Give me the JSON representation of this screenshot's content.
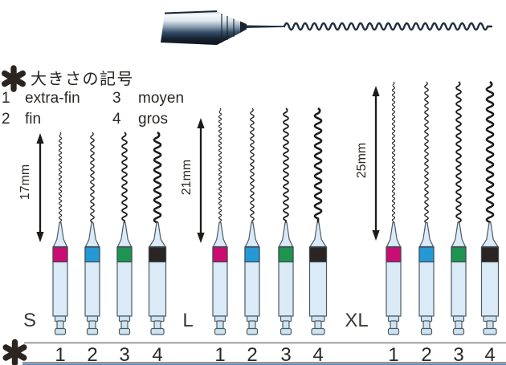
{
  "legend": {
    "marker": "✱",
    "heading": "大きさの記号",
    "items": [
      {
        "num": "1",
        "label": "extra-fin"
      },
      {
        "num": "2",
        "label": "fin"
      },
      {
        "num": "3",
        "label": "moyen"
      },
      {
        "num": "4",
        "label": "gros"
      }
    ]
  },
  "sizes": [
    {
      "num": "1",
      "name": "extra-fin",
      "band_color": "#c90d72",
      "handle_width": 18,
      "wire_amplitude": 1.7,
      "wire_period": 6,
      "wire_stroke": 1.0
    },
    {
      "num": "2",
      "name": "fin",
      "band_color": "#2598d6",
      "handle_width": 18,
      "wire_amplitude": 2.3,
      "wire_period": 8,
      "wire_stroke": 1.3
    },
    {
      "num": "3",
      "name": "moyen",
      "band_color": "#1e9450",
      "handle_width": 18,
      "wire_amplitude": 3.2,
      "wire_period": 10,
      "wire_stroke": 1.8
    },
    {
      "num": "4",
      "name": "gros",
      "band_color": "#2a2422",
      "handle_width": 21,
      "wire_amplitude": 4.4,
      "wire_period": 12.5,
      "wire_stroke": 2.6
    }
  ],
  "groups": [
    {
      "label": "S",
      "length_label": "17mm",
      "size_numbers": [
        "1",
        "2",
        "3",
        "4"
      ]
    },
    {
      "label": "L",
      "length_label": "21mm",
      "size_numbers": [
        "1",
        "2",
        "3",
        "4"
      ]
    },
    {
      "label": "XL",
      "length_label": "25mm",
      "size_numbers": [
        "1",
        "2",
        "3",
        "4"
      ]
    }
  ],
  "footer": {
    "marker": "✱"
  },
  "colors": {
    "wire": "#1b1b1b",
    "handle_fill": "#daeaf7",
    "latch_fill": "#cde3f2",
    "handle_outline": "#4e5a63",
    "band_outline": "#3f4a52",
    "arrow": "#1e1a17",
    "divider_gray_top": "#9e9e9e",
    "divider_gray_bottom": "#8b8b8b",
    "divider_blue": "#4d87c9",
    "handpiece_dark": "#14202e",
    "handpiece_wire": "#1f2d40"
  }
}
